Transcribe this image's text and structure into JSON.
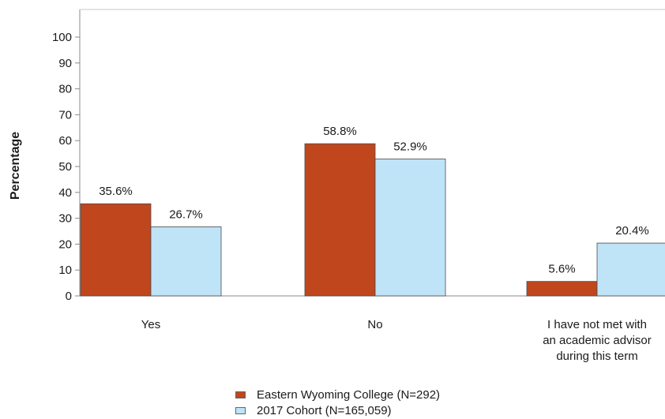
{
  "chart_data": {
    "type": "bar",
    "ylabel": "Percentage",
    "xlabel": "",
    "ylim": [
      0,
      100
    ],
    "yticks": [
      0,
      10,
      20,
      30,
      40,
      50,
      60,
      70,
      80,
      90,
      100
    ],
    "categories": [
      [
        "Yes"
      ],
      [
        "No"
      ],
      [
        "I have not met with",
        "an academic advisor",
        "during this term"
      ]
    ],
    "series": [
      {
        "name": "Eastern Wyoming College (N=292)",
        "color": "#c0461d",
        "values": [
          35.6,
          58.8,
          5.6
        ],
        "labels": [
          "35.6%",
          "58.8%",
          "5.6%"
        ]
      },
      {
        "name": "2017 Cohort (N=165,059)",
        "color": "#bfe3f7",
        "values": [
          26.7,
          52.9,
          20.4
        ],
        "labels": [
          "26.7%",
          "52.9%",
          "20.4%"
        ]
      }
    ],
    "grid": false,
    "legend_position": "bottom"
  }
}
